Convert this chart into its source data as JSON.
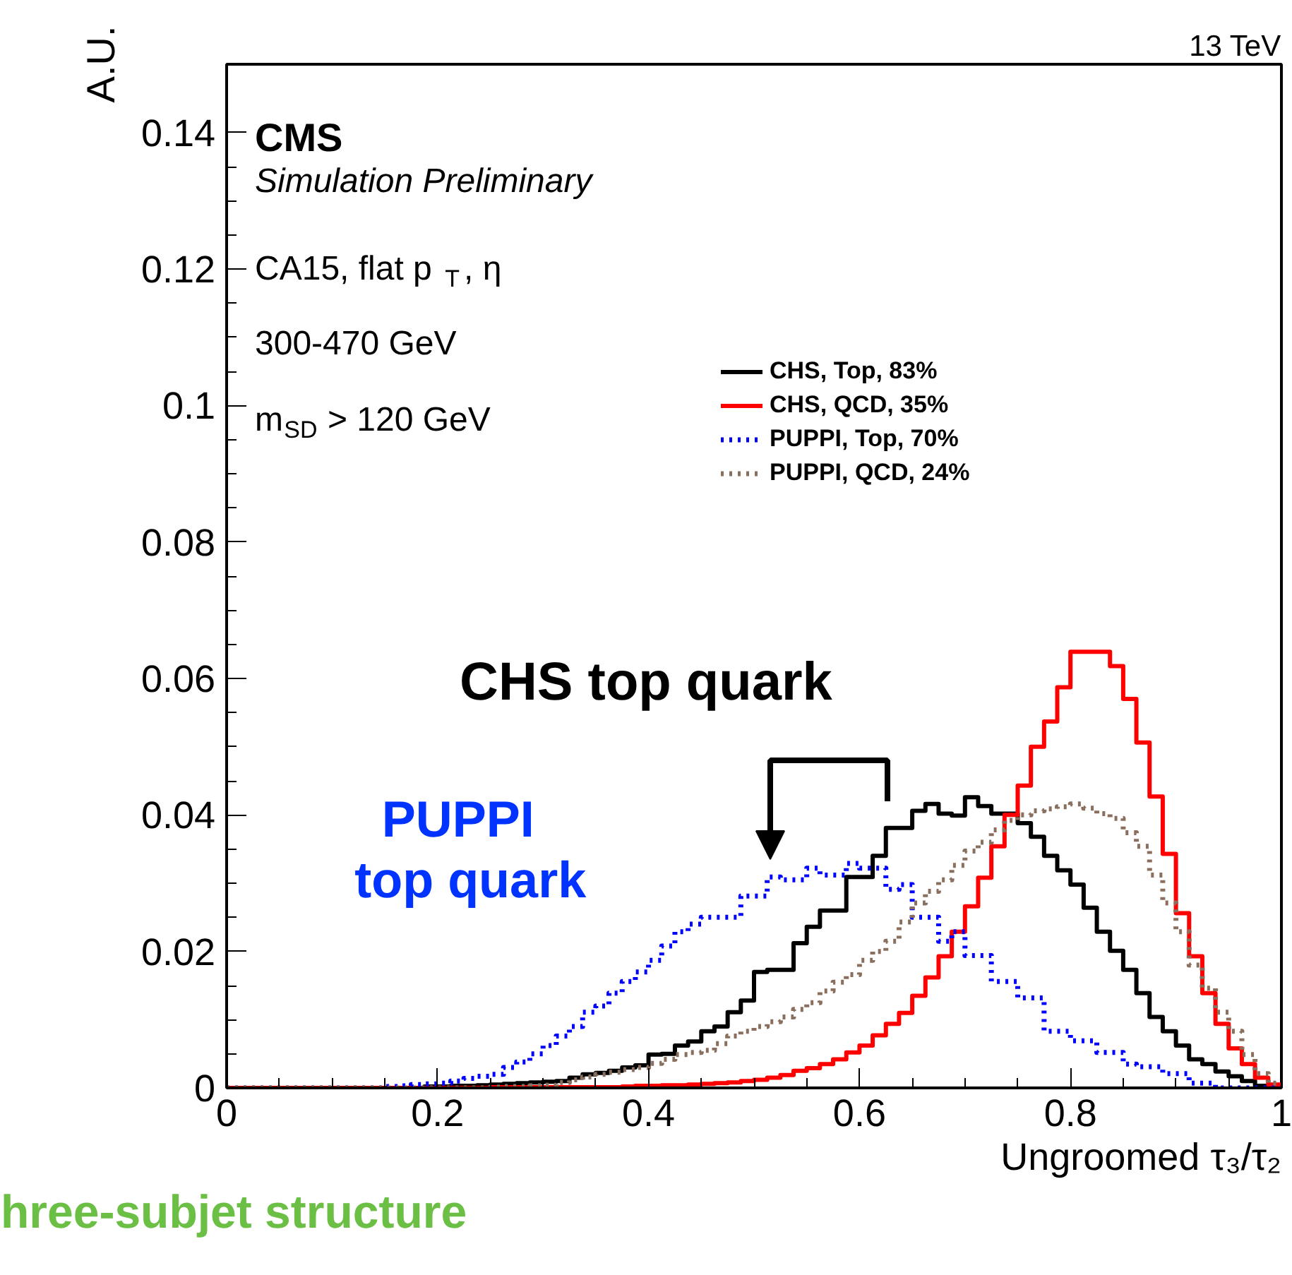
{
  "chart_data": {
    "type": "histogram",
    "xlabel": "Ungroomed τ₃/τ₂",
    "ylabel": "A.U.",
    "annotations": [
      "13 TeV",
      "CMS",
      "Simulation Preliminary",
      "CA15, flat p$_{T}$, η",
      "300-470 GeV",
      "m$_{SD}$ > 120 GeV",
      "CHS top quark",
      "PUPPI\ntop quark",
      "hree-subjet structure"
    ],
    "bins": [
      0,
      0.0125,
      0.025,
      0.0375,
      0.05,
      0.0625,
      0.075,
      0.0875,
      0.1,
      0.1125,
      0.125,
      0.1375,
      0.15,
      0.1625,
      0.175,
      0.1875,
      0.2,
      0.2125,
      0.225,
      0.2375,
      0.25,
      0.2625,
      0.275,
      0.2875,
      0.3,
      0.3125,
      0.325,
      0.3375,
      0.35,
      0.3625,
      0.375,
      0.3875,
      0.4,
      0.4125,
      0.425,
      0.4375,
      0.45,
      0.4625,
      0.475,
      0.4875,
      0.5,
      0.5125,
      0.525,
      0.5375,
      0.55,
      0.5625,
      0.575,
      0.5875,
      0.6,
      0.6125,
      0.625,
      0.6375,
      0.65,
      0.6625,
      0.675,
      0.6875,
      0.7,
      0.7125,
      0.725,
      0.7375,
      0.75,
      0.7625,
      0.775,
      0.7875,
      0.8,
      0.8125,
      0.825,
      0.8375,
      0.85,
      0.8625,
      0.875,
      0.8875,
      0.9,
      0.9125,
      0.925,
      0.9375,
      0.95,
      0.9625,
      0.975,
      0.9875,
      1
    ],
    "series": [
      {
        "name": "CHS, Top, 83%",
        "color": "#000000",
        "line_style": "solid",
        "values": [
          0,
          0,
          0,
          0,
          0,
          0,
          0,
          0,
          0,
          0,
          0,
          0,
          0,
          0,
          0,
          0.0002,
          0.0002,
          0.0003,
          0.0003,
          0.0004,
          0.0005,
          0.0006,
          0.0007,
          0.0008,
          0.0009,
          0.001,
          0.0015,
          0.002,
          0.0022,
          0.0025,
          0.003,
          0.0033,
          0.0049,
          0.005,
          0.0062,
          0.0068,
          0.0083,
          0.009,
          0.0111,
          0.0128,
          0.017,
          0.0173,
          0.0173,
          0.0212,
          0.0236,
          0.026,
          0.026,
          0.0309,
          0.0309,
          0.034,
          0.0381,
          0.0381,
          0.0406,
          0.0416,
          0.0402,
          0.0399,
          0.0426,
          0.0413,
          0.0402,
          0.0402,
          0.0388,
          0.0368,
          0.034,
          0.0319,
          0.0298,
          0.0264,
          0.0229,
          0.0201,
          0.0173,
          0.0139,
          0.0104,
          0.0083,
          0.0062,
          0.0042,
          0.0035,
          0.0024,
          0.0017,
          0.001,
          0.0003,
          0.0001
        ]
      },
      {
        "name": "CHS, QCD, 35%",
        "color": "#ff0000",
        "line_style": "solid",
        "values": [
          0,
          0,
          0,
          0,
          0,
          0,
          0,
          0,
          0,
          0,
          0,
          0,
          0,
          0,
          0,
          0,
          0,
          0,
          0,
          0,
          0.0001,
          0.0001,
          0.0001,
          0.0001,
          0.0001,
          0.0001,
          0.0001,
          0.0001,
          0.0001,
          0.0001,
          0.0002,
          0.0003,
          0.0003,
          0.0004,
          0.0004,
          0.0005,
          0.0006,
          0.0007,
          0.0008,
          0.001,
          0.0012,
          0.0015,
          0.0019,
          0.0025,
          0.0029,
          0.0035,
          0.0042,
          0.0052,
          0.0062,
          0.0077,
          0.0094,
          0.011,
          0.0135,
          0.0162,
          0.0193,
          0.0229,
          0.0266,
          0.0308,
          0.0354,
          0.04,
          0.0443,
          0.05,
          0.0537,
          0.0587,
          0.0639,
          0.0639,
          0.0639,
          0.0618,
          0.057,
          0.0506,
          0.0427,
          0.0343,
          0.0256,
          0.0193,
          0.0139,
          0.0094,
          0.0058,
          0.0035,
          0.0015,
          0.0005
        ]
      },
      {
        "name": "PUPPI, Top, 70%",
        "color": "#0000ff",
        "line_style": "dotted",
        "values": [
          0,
          0,
          0,
          0,
          0,
          0,
          0,
          0,
          0,
          0,
          0,
          0,
          0.0002,
          0.0003,
          0.0005,
          0.0006,
          0.0007,
          0.001,
          0.0014,
          0.0017,
          0.002,
          0.003,
          0.0038,
          0.005,
          0.0062,
          0.0076,
          0.009,
          0.0111,
          0.012,
          0.0139,
          0.0156,
          0.017,
          0.0187,
          0.0208,
          0.0229,
          0.024,
          0.025,
          0.025,
          0.025,
          0.0281,
          0.0281,
          0.0309,
          0.0305,
          0.0305,
          0.0322,
          0.0312,
          0.0312,
          0.0329,
          0.0322,
          0.0322,
          0.0291,
          0.0298,
          0.025,
          0.025,
          0.0215,
          0.0229,
          0.0194,
          0.0194,
          0.0156,
          0.0156,
          0.0132,
          0.0132,
          0.0083,
          0.0083,
          0.0069,
          0.0069,
          0.0052,
          0.0052,
          0.0035,
          0.0031,
          0.0031,
          0.0021,
          0.0021,
          0.0007,
          0.0007,
          0,
          0,
          0,
          0,
          0
        ]
      },
      {
        "name": "PUPPI, QCD, 24%",
        "color": "#8b6f5e",
        "line_style": "dotted",
        "values": [
          0,
          0,
          0,
          0,
          0,
          0,
          0,
          0,
          0,
          0,
          0,
          0,
          0,
          0,
          0,
          0,
          0,
          0,
          0,
          0,
          0.0001,
          0.0002,
          0.0002,
          0.0003,
          0.0004,
          0.0008,
          0.0012,
          0.0016,
          0.002,
          0.0023,
          0.0027,
          0.003,
          0.0036,
          0.0042,
          0.0049,
          0.0052,
          0.0055,
          0.0065,
          0.0076,
          0.0083,
          0.009,
          0.0097,
          0.0104,
          0.0115,
          0.0125,
          0.0142,
          0.0155,
          0.0166,
          0.0187,
          0.02,
          0.0215,
          0.0243,
          0.0271,
          0.0288,
          0.0305,
          0.0326,
          0.0347,
          0.036,
          0.0378,
          0.0392,
          0.04,
          0.0406,
          0.0409,
          0.0412,
          0.0416,
          0.041,
          0.0402,
          0.0395,
          0.0374,
          0.0354,
          0.0312,
          0.0271,
          0.0229,
          0.018,
          0.0146,
          0.0111,
          0.0083,
          0.0049,
          0.0021,
          0.0007
        ]
      }
    ],
    "xlim": [
      0,
      1
    ],
    "ylim": [
      0,
      0.15
    ],
    "xticks": [
      0,
      0.2,
      0.4,
      0.6,
      0.8,
      1
    ],
    "yticks": [
      0,
      0.02,
      0.04,
      0.06,
      0.08,
      0.1,
      0.12,
      0.14
    ],
    "legend": "top right",
    "grid": false,
    "marker": "none"
  }
}
